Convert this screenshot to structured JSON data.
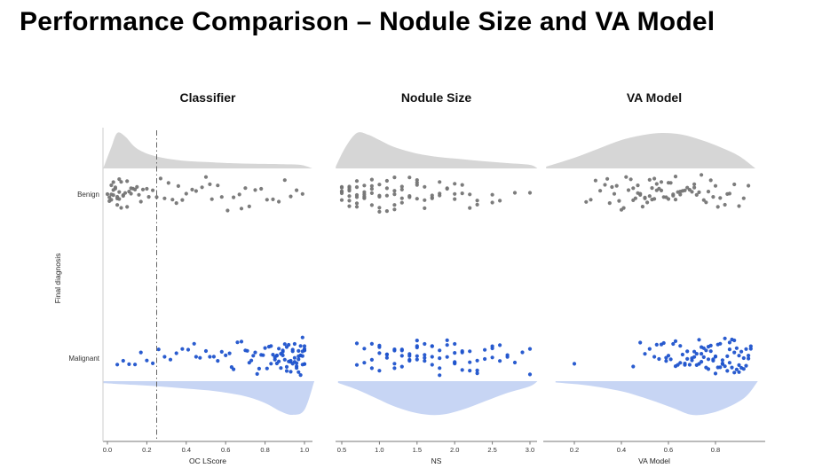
{
  "title": "Performance Comparison – Nodule Size and VA Model",
  "chart_data": {
    "type": "raincloud (half-violin + jittered strip plot), 3 facets",
    "title": "Performance Comparison – Nodule Size and VA Model",
    "ylabel": "Final diagnosis",
    "categories": [
      "Benign",
      "Malignant"
    ],
    "legend": "none",
    "grid": false,
    "colors": {
      "benign_violin": "#d6d6d6",
      "benign_points": "#757575",
      "malignant_violin": "#c7d5f4",
      "malignant_points": "#1f53cc",
      "threshold_line": "#666666",
      "axis": "#777777"
    },
    "panels": [
      {
        "name": "Classifier",
        "xlabel": "OC LScore",
        "xlim": [
          0.0,
          1.05
        ],
        "xticks": [
          0.0,
          0.2,
          0.4,
          0.6,
          0.8,
          1.0
        ],
        "threshold_line": 0.25,
        "benign": {
          "violin_x": [
            -0.02,
            0.02,
            0.05,
            0.09,
            0.14,
            0.2,
            0.28,
            0.38,
            0.5,
            0.62,
            0.75,
            0.88,
            0.98,
            1.04
          ],
          "violin_h": [
            0.02,
            0.6,
            1.0,
            0.9,
            0.6,
            0.42,
            0.3,
            0.22,
            0.18,
            0.15,
            0.13,
            0.12,
            0.1,
            0.0
          ],
          "points": [
            0.0,
            0.01,
            0.01,
            0.02,
            0.02,
            0.02,
            0.03,
            0.03,
            0.03,
            0.04,
            0.04,
            0.05,
            0.05,
            0.05,
            0.06,
            0.06,
            0.07,
            0.07,
            0.08,
            0.08,
            0.09,
            0.1,
            0.1,
            0.11,
            0.12,
            0.13,
            0.14,
            0.15,
            0.16,
            0.17,
            0.18,
            0.2,
            0.21,
            0.23,
            0.25,
            0.27,
            0.29,
            0.31,
            0.33,
            0.35,
            0.38,
            0.4,
            0.43,
            0.45,
            0.48,
            0.5,
            0.53,
            0.56,
            0.58,
            0.61,
            0.64,
            0.67,
            0.7,
            0.72,
            0.75,
            0.78,
            0.81,
            0.84,
            0.87,
            0.9,
            0.93,
            0.96,
            0.99,
            0.36,
            0.52,
            0.68,
            0.12,
            0.06
          ]
        },
        "malignant": {
          "violin_x": [
            -0.02,
            0.1,
            0.25,
            0.4,
            0.55,
            0.7,
            0.8,
            0.88,
            0.94,
            1.0,
            1.05
          ],
          "violin_h": [
            0.06,
            0.1,
            0.15,
            0.22,
            0.3,
            0.45,
            0.65,
            0.9,
            1.0,
            0.85,
            0.0
          ],
          "points": [
            0.05,
            0.08,
            0.11,
            0.14,
            0.17,
            0.2,
            0.23,
            0.26,
            0.29,
            0.32,
            0.35,
            0.38,
            0.41,
            0.44,
            0.47,
            0.5,
            0.52,
            0.54,
            0.56,
            0.58,
            0.6,
            0.62,
            0.64,
            0.66,
            0.68,
            0.7,
            0.71,
            0.72,
            0.73,
            0.74,
            0.75,
            0.76,
            0.77,
            0.78,
            0.79,
            0.8,
            0.81,
            0.82,
            0.83,
            0.84,
            0.85,
            0.85,
            0.86,
            0.86,
            0.87,
            0.87,
            0.88,
            0.88,
            0.89,
            0.89,
            0.9,
            0.9,
            0.91,
            0.91,
            0.92,
            0.92,
            0.93,
            0.93,
            0.94,
            0.94,
            0.94,
            0.95,
            0.95,
            0.95,
            0.96,
            0.96,
            0.96,
            0.97,
            0.97,
            0.97,
            0.97,
            0.98,
            0.98,
            0.98,
            0.98,
            0.99,
            0.99,
            0.99,
            0.99,
            1.0,
            1.0,
            1.0,
            1.0,
            1.0,
            1.0,
            0.89,
            0.91,
            0.93,
            0.86,
            0.83,
            0.63,
            0.45
          ]
        }
      },
      {
        "name": "Nodule Size",
        "xlabel": "NS",
        "xlim": [
          0.4,
          3.1
        ],
        "xticks": [
          0.5,
          1.0,
          1.5,
          2.0,
          2.5,
          3.0
        ],
        "threshold_line": null,
        "benign": {
          "violin_x": [
            0.42,
            0.55,
            0.7,
            0.85,
            1.0,
            1.2,
            1.5,
            1.8,
            2.1,
            2.4,
            2.7,
            3.0,
            3.1
          ],
          "violin_h": [
            0.05,
            0.6,
            1.0,
            0.95,
            0.8,
            0.6,
            0.42,
            0.32,
            0.26,
            0.2,
            0.15,
            0.1,
            0.0
          ],
          "points": [
            0.5,
            0.5,
            0.5,
            0.5,
            0.5,
            0.5,
            0.6,
            0.6,
            0.6,
            0.6,
            0.6,
            0.6,
            0.6,
            0.7,
            0.7,
            0.7,
            0.7,
            0.7,
            0.7,
            0.8,
            0.8,
            0.8,
            0.8,
            0.8,
            0.8,
            0.9,
            0.9,
            0.9,
            0.9,
            0.9,
            1.0,
            1.0,
            1.0,
            1.0,
            1.0,
            1.1,
            1.1,
            1.1,
            1.1,
            1.2,
            1.2,
            1.2,
            1.2,
            1.2,
            1.3,
            1.3,
            1.3,
            1.3,
            1.4,
            1.4,
            1.4,
            1.5,
            1.5,
            1.5,
            1.5,
            1.6,
            1.6,
            1.6,
            1.7,
            1.7,
            1.7,
            1.8,
            1.8,
            1.8,
            1.9,
            1.9,
            2.0,
            2.0,
            2.0,
            2.1,
            2.1,
            2.2,
            2.2,
            2.3,
            2.3,
            2.5,
            2.5,
            2.6,
            2.8,
            3.0
          ]
        },
        "malignant": {
          "violin_x": [
            0.45,
            0.7,
            0.95,
            1.2,
            1.5,
            1.8,
            2.1,
            2.4,
            2.7,
            3.0,
            3.1
          ],
          "violin_h": [
            0.05,
            0.25,
            0.5,
            0.75,
            0.95,
            1.0,
            0.85,
            0.6,
            0.35,
            0.15,
            0.0
          ],
          "points": [
            0.7,
            0.7,
            0.8,
            0.8,
            0.9,
            0.9,
            0.9,
            1.0,
            1.0,
            1.0,
            1.0,
            1.1,
            1.1,
            1.1,
            1.2,
            1.2,
            1.2,
            1.2,
            1.3,
            1.3,
            1.3,
            1.3,
            1.4,
            1.4,
            1.4,
            1.4,
            1.5,
            1.5,
            1.5,
            1.5,
            1.5,
            1.6,
            1.6,
            1.6,
            1.6,
            1.7,
            1.7,
            1.7,
            1.7,
            1.8,
            1.8,
            1.8,
            1.8,
            1.9,
            1.9,
            1.9,
            2.0,
            2.0,
            2.0,
            2.0,
            2.0,
            2.1,
            2.1,
            2.1,
            2.2,
            2.2,
            2.2,
            2.3,
            2.3,
            2.3,
            2.4,
            2.4,
            2.5,
            2.5,
            2.5,
            2.6,
            2.6,
            2.7,
            2.7,
            2.8,
            2.9,
            3.0,
            3.0
          ]
        }
      },
      {
        "name": "VA Model",
        "xlabel": "VA Model",
        "xlim": [
          0.05,
          1.0
        ],
        "xticks": [
          0.2,
          0.4,
          0.6,
          0.8
        ],
        "threshold_line": null,
        "benign": {
          "violin_x": [
            0.08,
            0.2,
            0.3,
            0.4,
            0.5,
            0.58,
            0.66,
            0.74,
            0.82,
            0.9,
            0.97
          ],
          "violin_h": [
            0.05,
            0.3,
            0.55,
            0.8,
            0.95,
            1.0,
            0.95,
            0.8,
            0.6,
            0.35,
            0.0
          ],
          "points": [
            0.25,
            0.27,
            0.29,
            0.31,
            0.33,
            0.34,
            0.36,
            0.37,
            0.38,
            0.39,
            0.4,
            0.41,
            0.42,
            0.43,
            0.44,
            0.45,
            0.45,
            0.46,
            0.47,
            0.48,
            0.48,
            0.49,
            0.5,
            0.5,
            0.51,
            0.52,
            0.52,
            0.53,
            0.54,
            0.54,
            0.55,
            0.55,
            0.56,
            0.57,
            0.57,
            0.58,
            0.59,
            0.6,
            0.6,
            0.61,
            0.62,
            0.62,
            0.63,
            0.64,
            0.65,
            0.65,
            0.66,
            0.67,
            0.68,
            0.69,
            0.7,
            0.71,
            0.72,
            0.73,
            0.74,
            0.75,
            0.76,
            0.77,
            0.78,
            0.79,
            0.8,
            0.81,
            0.82,
            0.84,
            0.86,
            0.88,
            0.9,
            0.92,
            0.94,
            0.35,
            0.47,
            0.53,
            0.63,
            0.71,
            0.85
          ]
        },
        "malignant": {
          "violin_x": [
            0.12,
            0.25,
            0.4,
            0.52,
            0.62,
            0.7,
            0.78,
            0.86,
            0.93,
            0.98
          ],
          "violin_h": [
            0.04,
            0.12,
            0.3,
            0.55,
            0.8,
            1.0,
            0.95,
            0.75,
            0.45,
            0.0
          ],
          "points": [
            0.2,
            0.45,
            0.48,
            0.5,
            0.52,
            0.54,
            0.55,
            0.56,
            0.57,
            0.58,
            0.59,
            0.6,
            0.61,
            0.62,
            0.63,
            0.64,
            0.65,
            0.65,
            0.66,
            0.67,
            0.67,
            0.68,
            0.69,
            0.7,
            0.7,
            0.71,
            0.71,
            0.72,
            0.72,
            0.73,
            0.73,
            0.74,
            0.74,
            0.75,
            0.75,
            0.76,
            0.76,
            0.77,
            0.77,
            0.78,
            0.78,
            0.79,
            0.79,
            0.8,
            0.8,
            0.81,
            0.81,
            0.82,
            0.82,
            0.83,
            0.83,
            0.84,
            0.84,
            0.85,
            0.85,
            0.86,
            0.86,
            0.87,
            0.87,
            0.88,
            0.88,
            0.89,
            0.89,
            0.9,
            0.9,
            0.91,
            0.91,
            0.92,
            0.92,
            0.93,
            0.93,
            0.94,
            0.94,
            0.95,
            0.95,
            0.68,
            0.74,
            0.8,
            0.86,
            0.9,
            0.59,
            0.63,
            0.77,
            0.83,
            0.88
          ]
        }
      }
    ]
  }
}
